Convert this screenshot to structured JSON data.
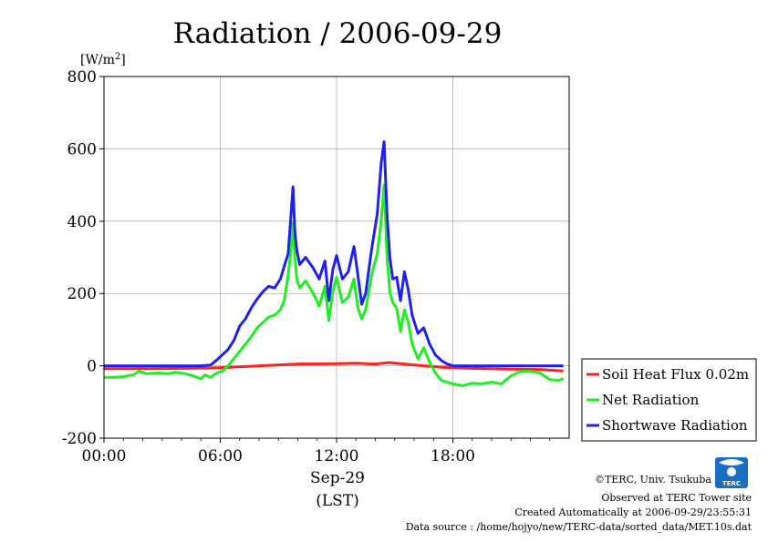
{
  "chart_data": {
    "type": "line",
    "title": "Radiation / 2006-09-29",
    "ylabel_unit": "[W/m",
    "ylabel_unit_sup": "2",
    "ylabel_unit_close": "]",
    "ylim": [
      -200,
      800
    ],
    "yticks": [
      -200,
      0,
      200,
      400,
      600,
      800
    ],
    "xlim": [
      0,
      24
    ],
    "xticks": [
      0,
      6,
      12,
      18
    ],
    "xtick_labels": [
      "00:00",
      "06:00",
      "12:00",
      "18:00"
    ],
    "xlabel_date": "Sep-29",
    "xlabel_tz": "(LST)",
    "grid": true,
    "legend_position": "right, below plot",
    "series": [
      {
        "name": "Soil Heat Flux 0.02m",
        "color": "#ff2020",
        "x": [
          0,
          2,
          4,
          5.5,
          6.5,
          8,
          10,
          12,
          13,
          14,
          14.7,
          15.5,
          16.5,
          17.5,
          19,
          21,
          22.5,
          23.7
        ],
        "y": [
          -8,
          -8,
          -7,
          -6,
          -4,
          0,
          5,
          6,
          7,
          5,
          9,
          5,
          0,
          -4,
          -7,
          -9,
          -10,
          -14
        ]
      },
      {
        "name": "Net Radiation",
        "color": "#20ee20",
        "x": [
          0,
          0.5,
          1,
          1.5,
          1.8,
          2.2,
          2.8,
          3.3,
          3.7,
          4.2,
          4.6,
          5,
          5.2,
          5.5,
          5.8,
          6.1,
          6.4,
          6.7,
          7,
          7.3,
          7.6,
          7.9,
          8.2,
          8.5,
          8.8,
          9.1,
          9.3,
          9.5,
          9.65,
          9.75,
          9.85,
          9.95,
          10.1,
          10.4,
          10.8,
          11.1,
          11.4,
          11.6,
          11.8,
          12,
          12.3,
          12.6,
          12.9,
          13.1,
          13.3,
          13.5,
          13.8,
          14.1,
          14.3,
          14.45,
          14.6,
          14.75,
          14.9,
          15.1,
          15.3,
          15.5,
          15.7,
          15.9,
          16.2,
          16.5,
          16.8,
          17.1,
          17.4,
          17.7,
          18,
          18.5,
          19,
          19.5,
          20,
          20.5,
          21,
          21.5,
          22,
          22.5,
          23,
          23.5,
          23.7
        ],
        "y": [
          -32,
          -32,
          -30,
          -25,
          -15,
          -22,
          -20,
          -22,
          -18,
          -22,
          -28,
          -36,
          -25,
          -32,
          -20,
          -15,
          0,
          20,
          40,
          60,
          80,
          105,
          120,
          135,
          140,
          155,
          180,
          250,
          320,
          395,
          300,
          240,
          215,
          235,
          200,
          165,
          220,
          125,
          205,
          245,
          175,
          190,
          240,
          160,
          130,
          155,
          250,
          310,
          400,
          500,
          300,
          205,
          175,
          160,
          95,
          155,
          120,
          60,
          20,
          50,
          10,
          -20,
          -40,
          -45,
          -50,
          -55,
          -48,
          -50,
          -45,
          -50,
          -28,
          -15,
          -15,
          -20,
          -38,
          -40,
          -35
        ]
      },
      {
        "name": "Shortwave Radiation",
        "color": "#2020ee",
        "x": [
          0,
          1,
          2,
          3,
          4,
          5,
          5.5,
          5.8,
          6.1,
          6.4,
          6.7,
          7,
          7.3,
          7.6,
          7.9,
          8.2,
          8.5,
          8.8,
          9.1,
          9.3,
          9.5,
          9.65,
          9.75,
          9.85,
          9.95,
          10.1,
          10.4,
          10.8,
          11.1,
          11.4,
          11.6,
          11.8,
          12,
          12.3,
          12.6,
          12.9,
          13.1,
          13.3,
          13.5,
          13.8,
          14.1,
          14.3,
          14.45,
          14.6,
          14.75,
          14.9,
          15.1,
          15.3,
          15.5,
          15.7,
          15.9,
          16.2,
          16.5,
          16.8,
          17.1,
          17.4,
          17.7,
          18,
          19,
          20,
          21,
          22,
          23,
          23.7
        ],
        "y": [
          0,
          0,
          0,
          0,
          0,
          0,
          2,
          15,
          30,
          45,
          70,
          110,
          130,
          160,
          185,
          205,
          220,
          215,
          240,
          275,
          310,
          420,
          495,
          370,
          320,
          280,
          300,
          270,
          240,
          290,
          180,
          265,
          305,
          240,
          260,
          330,
          250,
          170,
          200,
          320,
          420,
          560,
          620,
          420,
          300,
          240,
          245,
          180,
          260,
          210,
          140,
          90,
          105,
          60,
          30,
          15,
          5,
          0,
          0,
          0,
          0,
          0,
          0,
          0
        ]
      }
    ]
  },
  "credits": {
    "line1": "©TERC, Univ. Tsukuba",
    "line2": "Observed at TERC Tower site",
    "line3": "Created Automatically at 2006-09-29/23:55:31",
    "line4": "Data source : /home/hojyo/new/TERC-data/sorted_data/MET.10s.dat",
    "logo_text": "TERC"
  },
  "logo_color": "#1a6fc4"
}
